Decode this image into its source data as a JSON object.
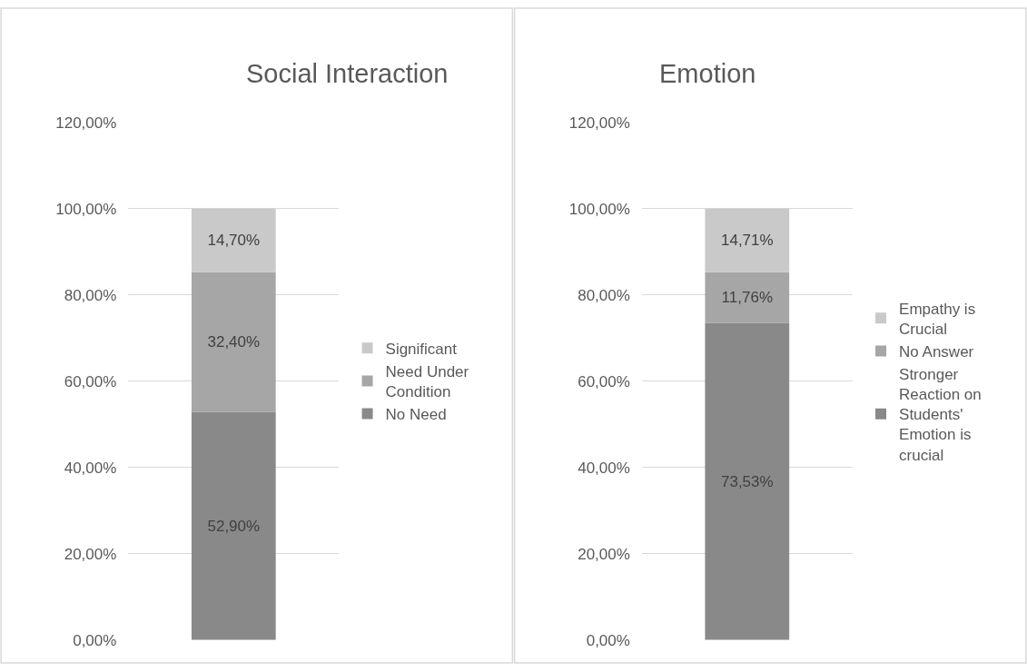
{
  "chart_data": [
    {
      "type": "bar",
      "title": "Social Interaction",
      "stacked": true,
      "categories": [
        null
      ],
      "ylim": [
        0,
        120
      ],
      "yticks": [
        {
          "value": 0,
          "label": "0,00%"
        },
        {
          "value": 20,
          "label": "20,00%"
        },
        {
          "value": 40,
          "label": "40,00%"
        },
        {
          "value": 60,
          "label": "60,00%"
        },
        {
          "value": 80,
          "label": "80,00%"
        },
        {
          "value": 100,
          "label": "100,00%"
        },
        {
          "value": 120,
          "label": "120,00%"
        }
      ],
      "grid": "y",
      "legend": "right",
      "series": [
        {
          "name": "No Need",
          "color": "#898989",
          "values": [
            52.9
          ],
          "value_labels": [
            "52,90%"
          ]
        },
        {
          "name": "Need Under Condition",
          "color": "#a6a6a6",
          "values": [
            32.4
          ],
          "value_labels": [
            "32,40%"
          ]
        },
        {
          "name": "Significant",
          "color": "#c9c9c9",
          "values": [
            14.7
          ],
          "value_labels": [
            "14,70%"
          ]
        }
      ]
    },
    {
      "type": "bar",
      "title": "Emotion",
      "stacked": true,
      "categories": [
        null
      ],
      "ylim": [
        0,
        120
      ],
      "yticks": [
        {
          "value": 0,
          "label": "0,00%"
        },
        {
          "value": 20,
          "label": "20,00%"
        },
        {
          "value": 40,
          "label": "40,00%"
        },
        {
          "value": 60,
          "label": "60,00%"
        },
        {
          "value": 80,
          "label": "80,00%"
        },
        {
          "value": 100,
          "label": "100,00%"
        },
        {
          "value": 120,
          "label": "120,00%"
        }
      ],
      "grid": "y",
      "legend": "right",
      "series": [
        {
          "name": "Stronger Reaction on Students' Emotion is crucial",
          "color": "#898989",
          "values": [
            73.53
          ],
          "value_labels": [
            "73,53%"
          ]
        },
        {
          "name": "No Answer",
          "color": "#a6a6a6",
          "values": [
            11.76
          ],
          "value_labels": [
            "11,76%"
          ]
        },
        {
          "name": "Empathy is Crucial",
          "color": "#c9c9c9",
          "values": [
            14.71
          ],
          "value_labels": [
            "14,71%"
          ]
        }
      ]
    }
  ]
}
